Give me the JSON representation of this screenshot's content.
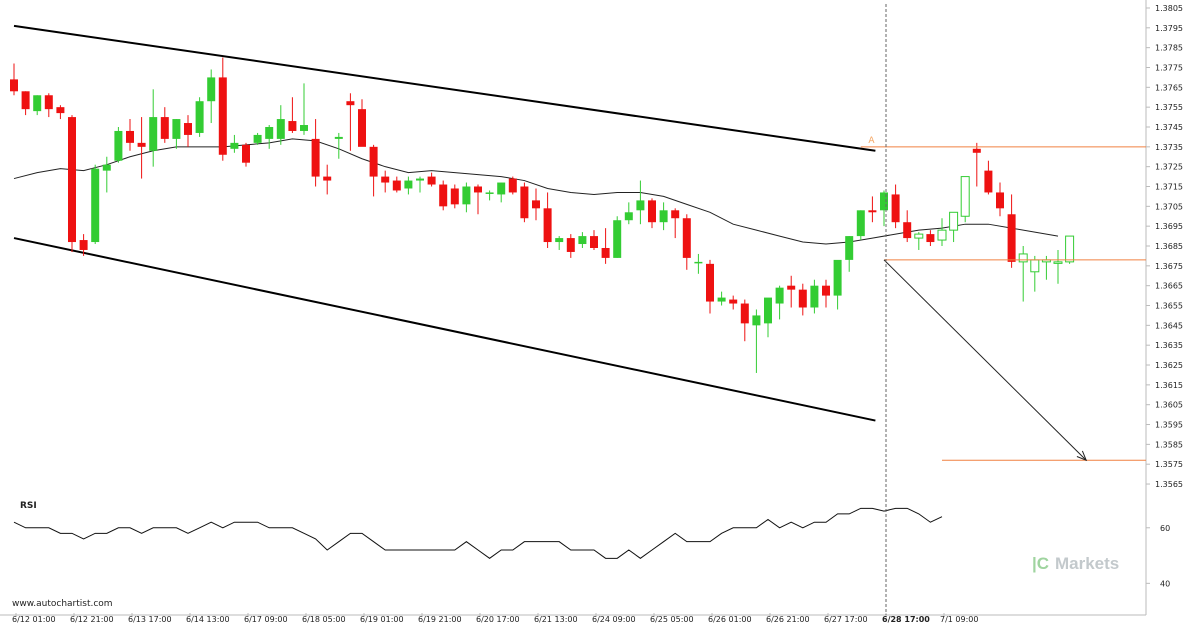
{
  "chart_data": {
    "type": "candlestick",
    "y_ticks": [
      "1.3805",
      "1.3795",
      "1.3785",
      "1.3775",
      "1.3765",
      "1.3755",
      "1.3745",
      "1.3735",
      "1.3725",
      "1.3715",
      "1.3705",
      "1.3695",
      "1.3685",
      "1.3675",
      "1.3665",
      "1.3655",
      "1.3645",
      "1.3635",
      "1.3625",
      "1.3615",
      "1.3605",
      "1.3595",
      "1.3585",
      "1.3575",
      "1.3565"
    ],
    "ylim": [
      1.3563,
      1.3806
    ],
    "x_ticks": [
      {
        "i": 0,
        "label": "6/12 01:00"
      },
      {
        "i": 5,
        "label": "6/12 21:00"
      },
      {
        "i": 10,
        "label": "6/13 17:00"
      },
      {
        "i": 15,
        "label": "6/14 13:00"
      },
      {
        "i": 20,
        "label": "6/17 09:00"
      },
      {
        "i": 25,
        "label": "6/18 05:00"
      },
      {
        "i": 30,
        "label": "6/19 01:00"
      },
      {
        "i": 35,
        "label": "6/19 21:00"
      },
      {
        "i": 40,
        "label": "6/20 17:00"
      },
      {
        "i": 45,
        "label": "6/21 13:00"
      },
      {
        "i": 50,
        "label": "6/24 09:00"
      },
      {
        "i": 55,
        "label": "6/25 05:00"
      },
      {
        "i": 60,
        "label": "6/26 01:00"
      },
      {
        "i": 65,
        "label": "6/26 21:00"
      },
      {
        "i": 70,
        "label": "6/27 17:00"
      },
      {
        "i": 75,
        "label": "6/28 17:00",
        "bold": true
      },
      {
        "i": 80,
        "label": "7/1 09:00"
      }
    ],
    "candles": [
      [
        1.3769,
        1.3777,
        1.3761,
        1.3763
      ],
      [
        1.3763,
        1.3763,
        1.3751,
        1.3754
      ],
      [
        1.3753,
        1.3761,
        1.3751,
        1.3761
      ],
      [
        1.3761,
        1.3762,
        1.375,
        1.3754
      ],
      [
        1.3755,
        1.3756,
        1.3749,
        1.3752
      ],
      [
        1.375,
        1.3751,
        1.3682,
        1.3687
      ],
      [
        1.3688,
        1.3691,
        1.368,
        1.3683
      ],
      [
        1.3687,
        1.3726,
        1.3686,
        1.3724
      ],
      [
        1.3723,
        1.373,
        1.3712,
        1.3726
      ],
      [
        1.3728,
        1.3745,
        1.3727,
        1.3743
      ],
      [
        1.3743,
        1.3749,
        1.3733,
        1.3737
      ],
      [
        1.3737,
        1.375,
        1.3719,
        1.3735
      ],
      [
        1.3733,
        1.3764,
        1.3725,
        1.375
      ],
      [
        1.375,
        1.3755,
        1.3737,
        1.3739
      ],
      [
        1.3739,
        1.3749,
        1.3734,
        1.3749
      ],
      [
        1.3747,
        1.3751,
        1.3735,
        1.3741
      ],
      [
        1.3742,
        1.376,
        1.374,
        1.3758
      ],
      [
        1.3758,
        1.3774,
        1.3747,
        1.377
      ],
      [
        1.377,
        1.378,
        1.3728,
        1.3731
      ],
      [
        1.3734,
        1.3741,
        1.3732,
        1.3737
      ],
      [
        1.3736,
        1.3737,
        1.3725,
        1.3727
      ],
      [
        1.3737,
        1.3742,
        1.3736,
        1.3741
      ],
      [
        1.3739,
        1.3746,
        1.3734,
        1.3745
      ],
      [
        1.3739,
        1.3756,
        1.3736,
        1.3749
      ],
      [
        1.3748,
        1.376,
        1.3742,
        1.3743
      ],
      [
        1.3743,
        1.3767,
        1.3741,
        1.3746
      ],
      [
        1.3739,
        1.3749,
        1.3715,
        1.372
      ],
      [
        1.372,
        1.3726,
        1.3711,
        1.3718
      ],
      [
        1.3739,
        1.3742,
        1.3729,
        1.374
      ],
      [
        1.3758,
        1.3762,
        1.3733,
        1.3756
      ],
      [
        1.3754,
        1.3759,
        1.3736,
        1.3735
      ],
      [
        1.3735,
        1.3736,
        1.371,
        1.372
      ],
      [
        1.372,
        1.3723,
        1.3712,
        1.3717
      ],
      [
        1.3718,
        1.372,
        1.3712,
        1.3713
      ],
      [
        1.3714,
        1.372,
        1.3711,
        1.3718
      ],
      [
        1.3718,
        1.372,
        1.3712,
        1.3719
      ],
      [
        1.372,
        1.3722,
        1.3715,
        1.3716
      ],
      [
        1.3716,
        1.3718,
        1.3703,
        1.3705
      ],
      [
        1.3714,
        1.3716,
        1.3704,
        1.3706
      ],
      [
        1.3706,
        1.3717,
        1.3702,
        1.3715
      ],
      [
        1.3715,
        1.3716,
        1.3701,
        1.3712
      ],
      [
        1.3712,
        1.3713,
        1.3708,
        1.3712
      ],
      [
        1.3711,
        1.3717,
        1.3707,
        1.3717
      ],
      [
        1.3719,
        1.372,
        1.3711,
        1.3712
      ],
      [
        1.3715,
        1.3717,
        1.3697,
        1.3699
      ],
      [
        1.3708,
        1.3714,
        1.3698,
        1.3704
      ],
      [
        1.3704,
        1.3712,
        1.3684,
        1.3687
      ],
      [
        1.3687,
        1.369,
        1.3683,
        1.3689
      ],
      [
        1.3689,
        1.3691,
        1.3679,
        1.3682
      ],
      [
        1.3686,
        1.3692,
        1.3684,
        1.369
      ],
      [
        1.369,
        1.3693,
        1.3683,
        1.3684
      ],
      [
        1.3684,
        1.3694,
        1.3676,
        1.3679
      ],
      [
        1.3679,
        1.37,
        1.3679,
        1.3698
      ],
      [
        1.3698,
        1.3707,
        1.3696,
        1.3702
      ],
      [
        1.3703,
        1.3718,
        1.3696,
        1.3708
      ],
      [
        1.3708,
        1.3709,
        1.3694,
        1.3697
      ],
      [
        1.3697,
        1.3707,
        1.3693,
        1.3703
      ],
      [
        1.3703,
        1.3704,
        1.3689,
        1.3699
      ],
      [
        1.3699,
        1.3701,
        1.3673,
        1.3679
      ],
      [
        1.3677,
        1.3681,
        1.3671,
        1.3677
      ],
      [
        1.3676,
        1.3678,
        1.3651,
        1.3657
      ],
      [
        1.3657,
        1.3662,
        1.3655,
        1.3659
      ],
      [
        1.3658,
        1.366,
        1.3653,
        1.3656
      ],
      [
        1.3656,
        1.3658,
        1.3637,
        1.3646
      ],
      [
        1.3645,
        1.3653,
        1.3621,
        1.365
      ],
      [
        1.3646,
        1.3658,
        1.3639,
        1.3659
      ],
      [
        1.3656,
        1.3665,
        1.3648,
        1.3664
      ],
      [
        1.3665,
        1.367,
        1.3654,
        1.3663
      ],
      [
        1.3663,
        1.3666,
        1.365,
        1.3654
      ],
      [
        1.3654,
        1.3668,
        1.3651,
        1.3665
      ],
      [
        1.3665,
        1.3668,
        1.3654,
        1.366
      ],
      [
        1.366,
        1.3676,
        1.3653,
        1.3678
      ],
      [
        1.3678,
        1.369,
        1.3672,
        1.369
      ],
      [
        1.369,
        1.3703,
        1.3688,
        1.3703
      ],
      [
        1.3703,
        1.371,
        1.3697,
        1.3702
      ],
      [
        1.3703,
        1.3713,
        1.3695,
        1.3712
      ],
      [
        1.3711,
        1.3716,
        1.3694,
        1.3697
      ],
      [
        1.3697,
        1.3703,
        1.3687,
        1.3689
      ],
      [
        1.3689,
        1.3692,
        1.3683,
        1.3691
      ],
      [
        1.3691,
        1.3693,
        1.3685,
        1.3687
      ],
      [
        1.3688,
        1.3699,
        1.3685,
        1.3693
      ],
      [
        1.3693,
        1.3702,
        1.3687,
        1.3702
      ],
      [
        1.37,
        1.3719,
        1.3697,
        1.372
      ],
      [
        1.3734,
        1.3737,
        1.3715,
        1.3732
      ],
      [
        1.3723,
        1.3728,
        1.3711,
        1.3712
      ],
      [
        1.3712,
        1.3717,
        1.37,
        1.3704
      ],
      [
        1.3701,
        1.3711,
        1.3674,
        1.3677
      ],
      [
        1.3677,
        1.3685,
        1.3657,
        1.3681
      ],
      [
        1.3672,
        1.368,
        1.3662,
        1.3678
      ],
      [
        1.3677,
        1.368,
        1.3668,
        1.3678
      ],
      [
        1.3677,
        1.3683,
        1.3666,
        1.3677
      ],
      [
        1.3677,
        1.369,
        1.3676,
        1.369
      ]
    ],
    "moving_average": [
      [
        0,
        1.3719
      ],
      [
        2,
        1.3722
      ],
      [
        4,
        1.3724
      ],
      [
        6,
        1.3723
      ],
      [
        8,
        1.3726
      ],
      [
        10,
        1.373
      ],
      [
        12,
        1.3733
      ],
      [
        14,
        1.3735
      ],
      [
        16,
        1.3735
      ],
      [
        18,
        1.3735
      ],
      [
        20,
        1.3736
      ],
      [
        22,
        1.3737
      ],
      [
        24,
        1.3739
      ],
      [
        26,
        1.3738
      ],
      [
        28,
        1.3734
      ],
      [
        30,
        1.3729
      ],
      [
        32,
        1.3725
      ],
      [
        34,
        1.3722
      ],
      [
        36,
        1.3723
      ],
      [
        38,
        1.3722
      ],
      [
        40,
        1.3721
      ],
      [
        42,
        1.372
      ],
      [
        44,
        1.3718
      ],
      [
        46,
        1.3714
      ],
      [
        48,
        1.3712
      ],
      [
        50,
        1.3711
      ],
      [
        52,
        1.3712
      ],
      [
        54,
        1.3712
      ],
      [
        56,
        1.371
      ],
      [
        58,
        1.3706
      ],
      [
        60,
        1.3702
      ],
      [
        62,
        1.3696
      ],
      [
        64,
        1.3693
      ],
      [
        66,
        1.369
      ],
      [
        68,
        1.3687
      ],
      [
        70,
        1.3686
      ],
      [
        72,
        1.3687
      ],
      [
        74,
        1.3689
      ],
      [
        76,
        1.3691
      ],
      [
        78,
        1.3693
      ],
      [
        80,
        1.3694
      ],
      [
        82,
        1.3696
      ],
      [
        84,
        1.3696
      ],
      [
        86,
        1.3694
      ],
      [
        88,
        1.3692
      ],
      [
        89,
        1.3691
      ],
      [
        90,
        1.369
      ]
    ],
    "channel": {
      "upper": [
        [
          0,
          1.3796
        ],
        [
          74,
          1.3733
        ]
      ],
      "lower": [
        [
          0,
          1.3689
        ],
        [
          74,
          1.3597
        ]
      ]
    },
    "pattern_point_label": "A",
    "levels": [
      {
        "value": 1.3735,
        "from_i": 73
      },
      {
        "value": 1.3678,
        "from_i": 75
      },
      {
        "value": 1.3577,
        "from_i": 80
      }
    ],
    "forecast_arrow": [
      [
        75,
        1.3678
      ],
      [
        92,
        1.3577
      ]
    ],
    "current_time_i": 75,
    "rsi": {
      "label": "RSI",
      "y_ticks": [
        "60",
        "40"
      ],
      "ylim": [
        34,
        70
      ],
      "values": [
        [
          0,
          62
        ],
        [
          1,
          60
        ],
        [
          2,
          60
        ],
        [
          3,
          60
        ],
        [
          4,
          58
        ],
        [
          5,
          58
        ],
        [
          6,
          56
        ],
        [
          7,
          58
        ],
        [
          8,
          58
        ],
        [
          9,
          60
        ],
        [
          10,
          60
        ],
        [
          11,
          58
        ],
        [
          12,
          60
        ],
        [
          13,
          60
        ],
        [
          14,
          60
        ],
        [
          15,
          58
        ],
        [
          16,
          60
        ],
        [
          17,
          62
        ],
        [
          18,
          60
        ],
        [
          19,
          62
        ],
        [
          20,
          62
        ],
        [
          21,
          62
        ],
        [
          22,
          60
        ],
        [
          23,
          60
        ],
        [
          24,
          60
        ],
        [
          25,
          58
        ],
        [
          26,
          56
        ],
        [
          27,
          52
        ],
        [
          28,
          55
        ],
        [
          29,
          58
        ],
        [
          30,
          58
        ],
        [
          31,
          55
        ],
        [
          32,
          52
        ],
        [
          33,
          52
        ],
        [
          34,
          52
        ],
        [
          35,
          52
        ],
        [
          36,
          52
        ],
        [
          37,
          52
        ],
        [
          38,
          52
        ],
        [
          39,
          55
        ],
        [
          40,
          52
        ],
        [
          41,
          49
        ],
        [
          42,
          52
        ],
        [
          43,
          52
        ],
        [
          44,
          55
        ],
        [
          45,
          55
        ],
        [
          46,
          55
        ],
        [
          47,
          55
        ],
        [
          48,
          52
        ],
        [
          49,
          52
        ],
        [
          50,
          52
        ],
        [
          51,
          49
        ],
        [
          52,
          49
        ],
        [
          53,
          52
        ],
        [
          54,
          49
        ],
        [
          55,
          52
        ],
        [
          56,
          55
        ],
        [
          57,
          58
        ],
        [
          58,
          55
        ],
        [
          59,
          55
        ],
        [
          60,
          55
        ],
        [
          61,
          58
        ],
        [
          62,
          60
        ],
        [
          63,
          60
        ],
        [
          64,
          60
        ],
        [
          65,
          63
        ],
        [
          66,
          60
        ],
        [
          67,
          62
        ],
        [
          68,
          60
        ],
        [
          69,
          62
        ],
        [
          70,
          62
        ],
        [
          71,
          65
        ],
        [
          72,
          65
        ],
        [
          73,
          67
        ],
        [
          74,
          67
        ],
        [
          75,
          66
        ],
        [
          76,
          67
        ],
        [
          77,
          67
        ],
        [
          78,
          65
        ],
        [
          79,
          62
        ],
        [
          80,
          64
        ]
      ]
    }
  },
  "footer": {
    "site": "www.autochartist.com",
    "brand_prefix": "|C",
    "brand": "Markets"
  }
}
